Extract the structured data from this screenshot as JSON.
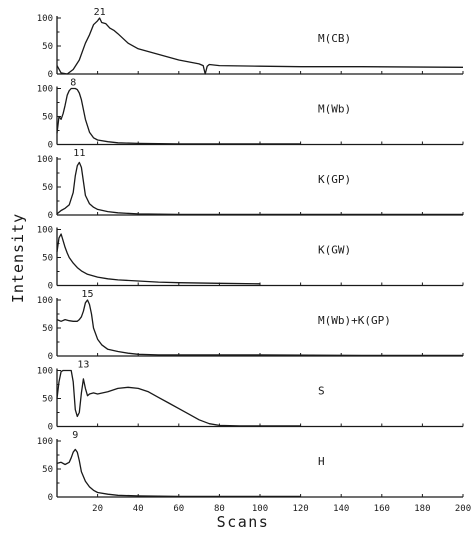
{
  "chart_data": {
    "type": "line",
    "xlabel": "Scans",
    "ylabel": "Intensity",
    "xlim": [
      0,
      200
    ],
    "x_ticks": [
      20,
      40,
      60,
      80,
      100,
      120,
      140,
      160,
      180,
      200
    ],
    "y_ticks": [
      "100",
      "50",
      "0"
    ],
    "panels": [
      {
        "label": "M(CB)",
        "peak_label": "21",
        "peak_x": 21,
        "x": [
          0,
          2,
          5,
          8,
          11,
          14,
          16,
          18,
          20,
          21,
          22,
          24,
          26,
          28,
          30,
          35,
          40,
          50,
          60,
          70,
          72,
          73,
          74,
          75,
          80,
          100,
          120,
          150,
          200
        ],
        "values": [
          15,
          2,
          0,
          8,
          25,
          55,
          70,
          88,
          95,
          100,
          92,
          90,
          82,
          78,
          72,
          55,
          45,
          35,
          25,
          18,
          15,
          0,
          14,
          17,
          15,
          14,
          13,
          13,
          12
        ]
      },
      {
        "label": "M(Wb)",
        "peak_label": "8",
        "peak_x": 8,
        "x": [
          0,
          1,
          2,
          3,
          4,
          5,
          6,
          7,
          8,
          9,
          10,
          11,
          12,
          14,
          16,
          18,
          20,
          25,
          30,
          40,
          60,
          80,
          100,
          120
        ],
        "values": [
          20,
          50,
          45,
          55,
          70,
          88,
          96,
          100,
          100,
          100,
          98,
          92,
          80,
          45,
          22,
          12,
          8,
          5,
          3,
          2,
          1,
          1,
          1,
          1
        ]
      },
      {
        "label": "K(GP)",
        "peak_label": "11",
        "peak_x": 11,
        "x": [
          0,
          2,
          4,
          6,
          8,
          9,
          10,
          11,
          12,
          13,
          14,
          16,
          18,
          20,
          25,
          30,
          40,
          60,
          80,
          100,
          150,
          200
        ],
        "values": [
          2,
          8,
          12,
          18,
          40,
          70,
          88,
          94,
          85,
          60,
          35,
          20,
          14,
          10,
          6,
          4,
          2,
          1,
          1,
          1,
          1,
          1
        ]
      },
      {
        "label": "K(GW)",
        "peak_label": "",
        "peak_x": 2,
        "x": [
          0,
          1,
          2,
          3,
          4,
          5,
          6,
          8,
          10,
          12,
          15,
          20,
          25,
          30,
          40,
          50,
          60,
          80,
          100
        ],
        "values": [
          60,
          85,
          92,
          80,
          68,
          58,
          50,
          40,
          32,
          26,
          20,
          15,
          12,
          10,
          8,
          6,
          5,
          4,
          3
        ]
      },
      {
        "label": "M(Wb)+K(GP)",
        "peak_label": "15",
        "peak_x": 15,
        "x": [
          0,
          2,
          4,
          6,
          8,
          10,
          11,
          12,
          13,
          14,
          15,
          16,
          17,
          18,
          20,
          22,
          25,
          30,
          35,
          40,
          50,
          60,
          80,
          100,
          150,
          200
        ],
        "values": [
          65,
          62,
          65,
          63,
          62,
          62,
          65,
          70,
          80,
          95,
          100,
          92,
          75,
          50,
          30,
          20,
          12,
          8,
          5,
          3,
          2,
          2,
          2,
          2,
          1,
          1
        ]
      },
      {
        "label": "S",
        "peak_label": "13",
        "peak_x": 13,
        "x": [
          0,
          1,
          2,
          3,
          4,
          5,
          6,
          7,
          8,
          9,
          10,
          11,
          12,
          13,
          14,
          15,
          16,
          18,
          20,
          25,
          30,
          35,
          40,
          45,
          50,
          55,
          60,
          65,
          70,
          75,
          80,
          90,
          100,
          120
        ],
        "values": [
          50,
          80,
          98,
          100,
          100,
          100,
          100,
          100,
          80,
          30,
          18,
          25,
          60,
          85,
          68,
          55,
          58,
          60,
          58,
          62,
          68,
          70,
          68,
          62,
          52,
          42,
          32,
          22,
          12,
          5,
          2,
          1,
          1,
          1
        ]
      },
      {
        "label": "H",
        "peak_label": "9",
        "peak_x": 9,
        "x": [
          0,
          2,
          4,
          6,
          7,
          8,
          9,
          10,
          11,
          12,
          14,
          16,
          18,
          20,
          25,
          30,
          40,
          60,
          80,
          100,
          120
        ],
        "values": [
          60,
          62,
          58,
          62,
          70,
          80,
          85,
          80,
          65,
          45,
          28,
          18,
          12,
          8,
          5,
          3,
          2,
          1,
          1,
          1,
          1
        ]
      }
    ]
  }
}
